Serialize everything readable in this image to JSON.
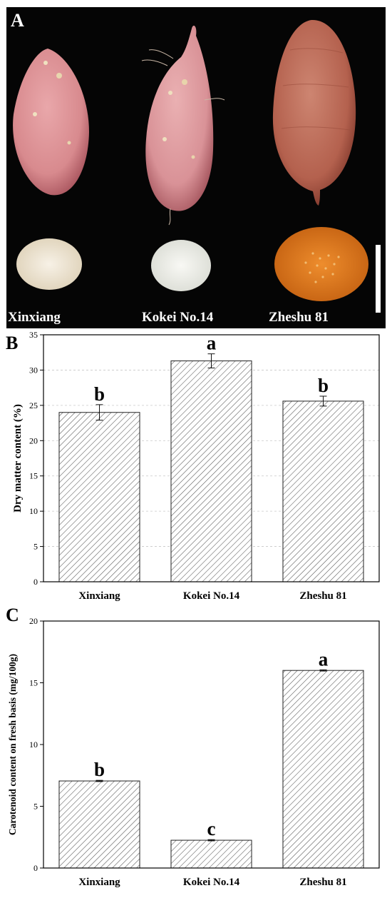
{
  "panel_a": {
    "letter": "A",
    "labels": [
      "Xinxiang",
      "Kokei No.14",
      "Zheshu 81"
    ]
  },
  "colors": {
    "background": "#050505",
    "xinxiang_skin": "#d88a8e",
    "kokei_skin": "#d99297",
    "zheshu_skin": "#b4614e",
    "xinxiang_flesh": "#efe9dc",
    "kokei_flesh": "#f1f2ee",
    "zheshu_flesh": "#e07a1e",
    "bar_hatch": "#555555"
  },
  "chart_data": [
    {
      "panel": "B",
      "type": "bar",
      "categories": [
        "Xinxiang",
        "Kokei No.14",
        "Zheshu 81"
      ],
      "values": [
        24.0,
        31.3,
        25.6
      ],
      "errors": [
        1.1,
        1.0,
        0.7
      ],
      "significance": [
        "b",
        "a",
        "b"
      ],
      "ylabel": "Dry matter content (%)",
      "ylim": [
        0,
        35
      ],
      "yticks": [
        0,
        5,
        10,
        15,
        20,
        25,
        30,
        35
      ],
      "grid": true
    },
    {
      "panel": "C",
      "type": "bar",
      "categories": [
        "Xinxiang",
        "Kokei No.14",
        "Zheshu 81"
      ],
      "values": [
        7.05,
        2.25,
        16.0
      ],
      "errors": [
        0.05,
        0.05,
        0.05
      ],
      "significance": [
        "b",
        "c",
        "a"
      ],
      "ylabel": "Carotenoid content on fresh basis (mg/100g)",
      "ylim": [
        0,
        20
      ],
      "yticks": [
        0,
        5,
        10,
        15,
        20
      ],
      "grid": false
    }
  ]
}
